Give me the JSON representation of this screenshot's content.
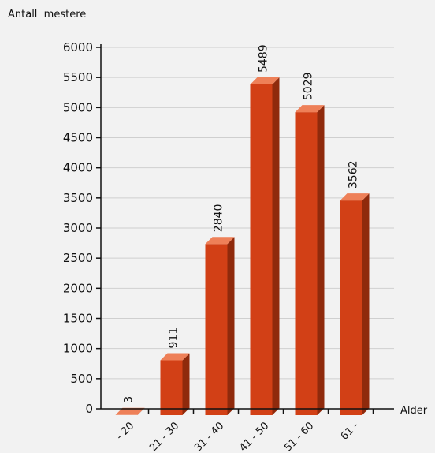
{
  "chart_data": {
    "type": "bar",
    "title": "",
    "ylabel": "Antall  mestere",
    "xlabel": "Alder",
    "categories": [
      "- 20",
      "21 - 30",
      "31 - 40",
      "41 - 50",
      "51 - 60",
      "61 -"
    ],
    "values": [
      3,
      911,
      2840,
      5489,
      5029,
      3562
    ],
    "ylim": [
      0,
      6000
    ],
    "yticks": [
      "0",
      "500",
      "1000",
      "1500",
      "2000",
      "2500",
      "3000",
      "3500",
      "4000",
      "4500",
      "5000",
      "5500",
      "6000"
    ],
    "grid": true,
    "bar_style": "3d",
    "colors": {
      "bar_front": "#d24016",
      "bar_side": "#8f2a0c",
      "bar_top": "#ee8058",
      "grid": "#cfcfcf",
      "axis": "#111111"
    }
  }
}
